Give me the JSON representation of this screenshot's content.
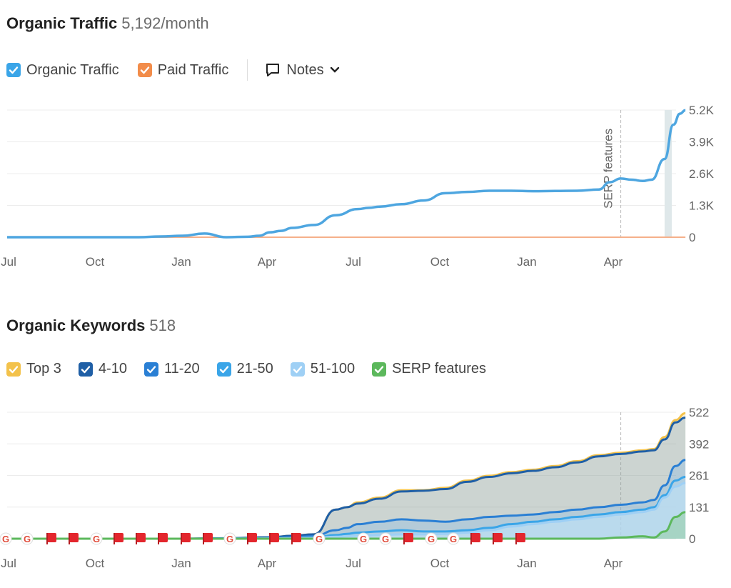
{
  "traffic": {
    "title": "Organic Traffic",
    "subtitle": "5,192/month",
    "legend": {
      "organic": {
        "label": "Organic Traffic",
        "color": "#3aa5e8"
      },
      "paid": {
        "label": "Paid Traffic",
        "color": "#f28c4a"
      },
      "notes": {
        "label": "Notes",
        "icon": "notes-icon"
      }
    },
    "annotation": "SERP features"
  },
  "keywords": {
    "title": "Organic Keywords",
    "subtitle": "518",
    "legend": [
      {
        "label": "Top 3",
        "color": "#f3c24b"
      },
      {
        "label": "4-10",
        "color": "#1f5fa6"
      },
      {
        "label": "11-20",
        "color": "#2a7fd4"
      },
      {
        "label": "21-50",
        "color": "#3aa5e8"
      },
      {
        "label": "51-100",
        "color": "#9fd0f5"
      },
      {
        "label": "SERP features",
        "color": "#5cb85c"
      }
    ]
  },
  "chart_data": [
    {
      "type": "line",
      "title": "Organic Traffic",
      "x_tick_labels": [
        "Jul",
        "Oct",
        "Jan",
        "Apr",
        "Jul",
        "Oct",
        "Jan",
        "Apr"
      ],
      "y_tick_labels": [
        "0",
        "1.3K",
        "2.6K",
        "3.9K",
        "5.2K"
      ],
      "ylim": [
        0,
        5200
      ],
      "grid": true,
      "annotation": {
        "label": "SERP features",
        "x": 28.0
      },
      "series": [
        {
          "name": "Organic Traffic",
          "color": "#4ea6e0",
          "x": [
            0,
            3,
            6,
            7,
            8,
            9,
            10,
            11,
            11.5,
            12,
            12.5,
            13,
            14,
            15,
            16,
            16.5,
            17,
            18,
            19,
            20,
            21,
            22,
            23,
            24,
            25,
            26,
            27,
            27.5,
            28,
            28.5,
            29,
            29.4,
            30,
            30.4,
            30.7,
            30.95
          ],
          "y": [
            0,
            0,
            0,
            30,
            60,
            150,
            0,
            20,
            60,
            200,
            260,
            380,
            500,
            900,
            1150,
            1200,
            1250,
            1350,
            1500,
            1800,
            1850,
            1900,
            1900,
            1880,
            1890,
            1900,
            1950,
            2250,
            2400,
            2350,
            2300,
            2350,
            3200,
            4600,
            5050,
            5192
          ]
        },
        {
          "name": "Paid Traffic",
          "color": "#f5b08a",
          "x": [
            0,
            30.95
          ],
          "y": [
            0,
            0
          ]
        }
      ]
    },
    {
      "type": "area",
      "title": "Organic Keywords",
      "x_tick_labels": [
        "Jul",
        "Oct",
        "Jan",
        "Apr",
        "Jul",
        "Oct",
        "Jan",
        "Apr"
      ],
      "y_tick_labels": [
        "0",
        "131",
        "261",
        "392",
        "522"
      ],
      "ylim": [
        0,
        522
      ],
      "grid": true,
      "x": [
        0,
        2,
        4,
        6,
        8,
        10,
        12,
        13,
        14,
        15,
        15.5,
        16,
        17,
        18,
        19,
        20,
        21,
        22,
        23,
        24,
        25,
        26,
        27,
        28,
        29,
        29.5,
        30,
        30.5,
        30.95
      ],
      "series": [
        {
          "name": "Top 3",
          "color": "#f3c24b",
          "values": [
            0,
            0,
            0,
            0,
            0,
            2,
            6,
            12,
            18,
            120,
            130,
            150,
            170,
            200,
            200,
            210,
            240,
            260,
            275,
            285,
            300,
            320,
            345,
            355,
            365,
            370,
            420,
            490,
            518
          ]
        },
        {
          "name": "4-10",
          "color": "#1f5fa6",
          "values": [
            0,
            0,
            0,
            0,
            0,
            2,
            6,
            12,
            18,
            120,
            130,
            145,
            165,
            195,
            198,
            205,
            235,
            255,
            270,
            280,
            295,
            315,
            340,
            350,
            360,
            365,
            410,
            480,
            500
          ]
        },
        {
          "name": "11-20",
          "color": "#2a7fd4",
          "values": [
            0,
            0,
            0,
            0,
            0,
            1,
            3,
            6,
            10,
            35,
            45,
            60,
            70,
            80,
            75,
            70,
            80,
            90,
            95,
            100,
            110,
            120,
            130,
            140,
            150,
            160,
            220,
            300,
            325
          ]
        },
        {
          "name": "21-50",
          "color": "#3aa5e8",
          "values": [
            0,
            0,
            0,
            0,
            0,
            1,
            2,
            3,
            5,
            15,
            20,
            25,
            30,
            35,
            30,
            30,
            35,
            45,
            60,
            70,
            80,
            90,
            100,
            110,
            120,
            130,
            180,
            240,
            255
          ]
        },
        {
          "name": "51-100",
          "color": "#9fd0f5",
          "values": [
            0,
            0,
            0,
            0,
            0,
            0,
            1,
            2,
            3,
            8,
            10,
            12,
            15,
            18,
            18,
            20,
            25,
            35,
            50,
            60,
            70,
            80,
            90,
            100,
            110,
            120,
            170,
            215,
            230
          ]
        },
        {
          "name": "SERP features",
          "color": "#5cb85c",
          "values": [
            0,
            0,
            0,
            0,
            0,
            0,
            0,
            0,
            0,
            0,
            0,
            0,
            0,
            0,
            0,
            0,
            0,
            0,
            0,
            0,
            0,
            0,
            0,
            5,
            10,
            5,
            30,
            90,
            110
          ]
        }
      ]
    }
  ]
}
